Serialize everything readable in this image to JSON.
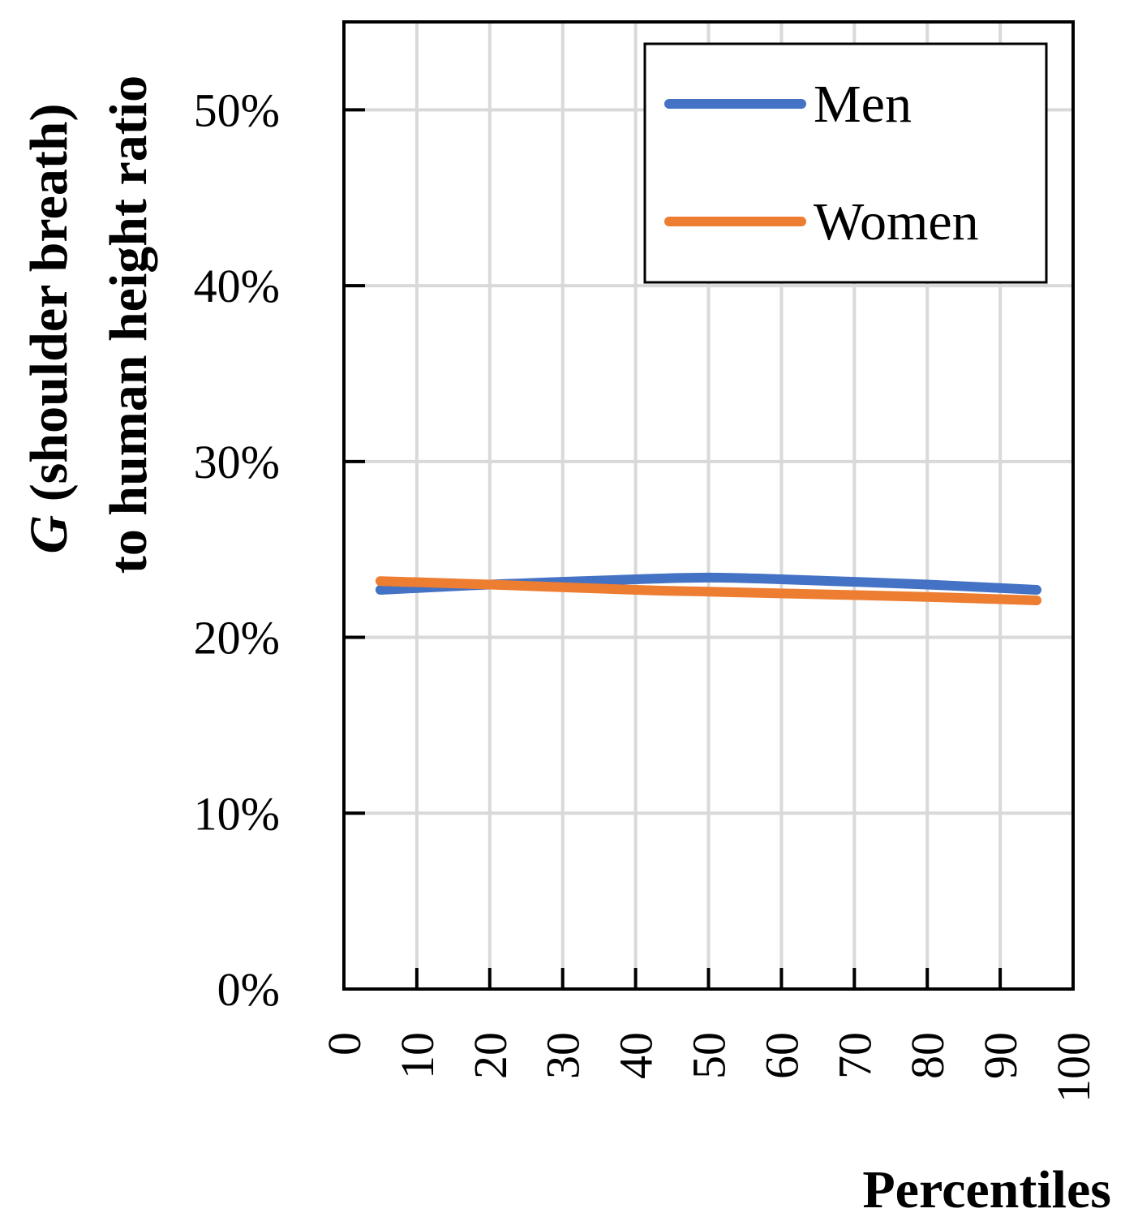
{
  "chart_data": {
    "type": "line",
    "title": "",
    "xlabel": "Percentiles",
    "ylabel": {
      "line1": "G (shoulder breath)",
      "line1_italic": "G",
      "line1_rest": " (shoulder breath)",
      "line2": "to human height ratio"
    },
    "xlim": [
      0,
      100
    ],
    "ylim": [
      0,
      0.55
    ],
    "xticks": [
      0,
      10,
      20,
      30,
      40,
      50,
      60,
      70,
      80,
      90,
      100
    ],
    "xtick_labels": [
      "0",
      "10",
      "20",
      "30",
      "40",
      "50",
      "60",
      "70",
      "80",
      "90",
      "100"
    ],
    "yticks": [
      0,
      0.1,
      0.2,
      0.3,
      0.4,
      0.5
    ],
    "ytick_labels": [
      "0%",
      "10%",
      "20%",
      "30%",
      "40%",
      "50%"
    ],
    "grid": true,
    "legend_position": "top-right",
    "series": [
      {
        "name": "Men",
        "color": "#4472C4",
        "x": [
          5,
          20,
          40,
          50,
          60,
          80,
          95
        ],
        "y": [
          0.227,
          0.23,
          0.233,
          0.234,
          0.233,
          0.23,
          0.227
        ]
      },
      {
        "name": "Women",
        "color": "#ED7D31",
        "x": [
          5,
          20,
          40,
          50,
          60,
          80,
          95
        ],
        "y": [
          0.232,
          0.23,
          0.227,
          0.226,
          0.225,
          0.223,
          0.221
        ]
      }
    ]
  }
}
